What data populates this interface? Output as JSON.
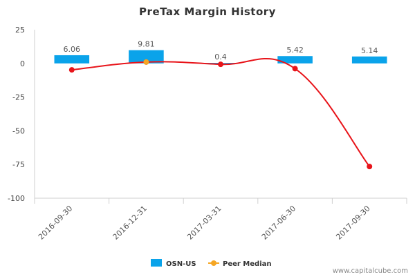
{
  "chart_data": {
    "type": "bar",
    "title": "PreTax Margin History",
    "xlabel": "",
    "ylabel": "",
    "ylim": [
      -100,
      25
    ],
    "yticks": [
      25,
      0,
      -25,
      -50,
      -75,
      -100
    ],
    "grid": false,
    "legend_position": "bottom-center",
    "categories": [
      "2016-09-30",
      "2016-12-31",
      "2017-03-31",
      "2017-06-30",
      "2017-09-30"
    ],
    "series": [
      {
        "name": "OSN-US",
        "type": "bar",
        "color": "#0aa3ea",
        "values": [
          6.06,
          9.81,
          0.4,
          5.42,
          5.14
        ],
        "labels": [
          "6.06",
          "9.81",
          "0.4",
          "5.42",
          "5.14"
        ]
      },
      {
        "name": "Peer Median",
        "type": "line",
        "color": "#f5a623",
        "values": [
          null,
          1.0,
          null,
          null,
          null
        ]
      },
      {
        "name": "",
        "type": "line",
        "color": "#e8141a",
        "values": [
          -4.8,
          1.0,
          -0.7,
          -3.9,
          -76.5
        ]
      }
    ],
    "credit": "www.capitalcube.com"
  }
}
